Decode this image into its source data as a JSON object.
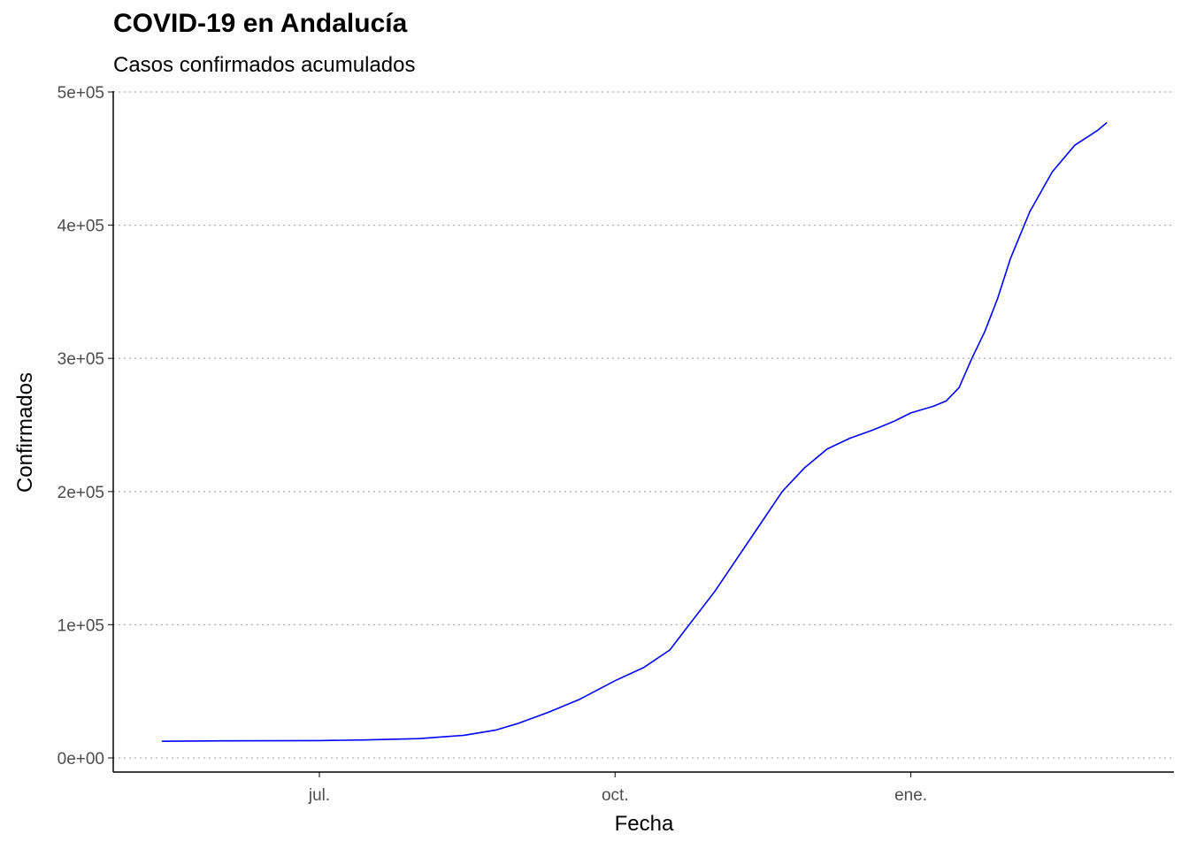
{
  "chart_data": {
    "type": "line",
    "title": "COVID-19 en Andalucía",
    "subtitle": "Casos confirmados acumulados",
    "xlabel": "Fecha",
    "ylabel": "Confirmados",
    "ylim": [
      0,
      500000
    ],
    "yticks": [
      {
        "value": 0,
        "label": "0e+00"
      },
      {
        "value": 100000,
        "label": "1e+05"
      },
      {
        "value": 200000,
        "label": "2e+05"
      },
      {
        "value": 300000,
        "label": "3e+05"
      },
      {
        "value": 400000,
        "label": "4e+05"
      },
      {
        "value": 500000,
        "label": "5e+05"
      }
    ],
    "xlim": [
      "2020-05-13",
      "2021-03-09"
    ],
    "xticks": [
      {
        "value": "2020-07-01",
        "label": "jul."
      },
      {
        "value": "2020-10-01",
        "label": "oct."
      },
      {
        "value": "2021-01-01",
        "label": "ene."
      }
    ],
    "grid": {
      "horizontal": true,
      "vertical": false,
      "style": "dotted"
    },
    "series": [
      {
        "color": "#0000ff",
        "x": [
          "2020-05-13",
          "2020-06-01",
          "2020-07-01",
          "2020-07-15",
          "2020-08-01",
          "2020-08-15",
          "2020-08-25",
          "2020-09-01",
          "2020-09-10",
          "2020-09-20",
          "2020-10-01",
          "2020-10-10",
          "2020-10-18",
          "2020-10-25",
          "2020-11-01",
          "2020-11-08",
          "2020-11-15",
          "2020-11-22",
          "2020-11-29",
          "2020-12-06",
          "2020-12-13",
          "2020-12-20",
          "2020-12-27",
          "2021-01-01",
          "2021-01-08",
          "2021-01-12",
          "2021-01-16",
          "2021-01-20",
          "2021-01-24",
          "2021-01-28",
          "2021-02-01",
          "2021-02-07",
          "2021-02-14",
          "2021-02-21",
          "2021-02-28",
          "2021-03-03"
        ],
        "y": [
          12500,
          12800,
          13000,
          13500,
          14500,
          17000,
          21000,
          26000,
          34000,
          44000,
          58000,
          68000,
          81000,
          103000,
          125000,
          150000,
          175000,
          200000,
          218000,
          232000,
          240000,
          246000,
          253000,
          259000,
          264000,
          268000,
          278000,
          300000,
          320000,
          345000,
          375000,
          410000,
          440000,
          460000,
          471000,
          477000
        ]
      }
    ]
  }
}
